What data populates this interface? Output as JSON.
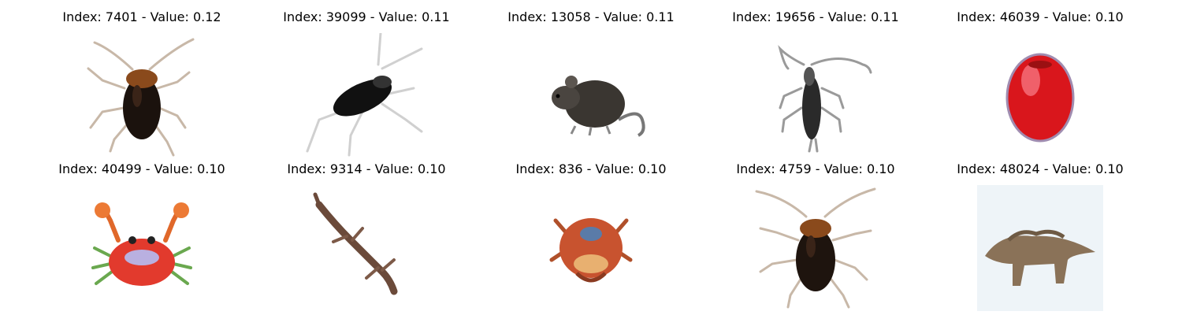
{
  "grid": {
    "items": [
      {
        "title": "Index: 7401 - Value: 0.12",
        "subject": "cockroach"
      },
      {
        "title": "Index: 39099 - Value: 0.11",
        "subject": "cockroach"
      },
      {
        "title": "Index: 13058 - Value: 0.11",
        "subject": "mouse"
      },
      {
        "title": "Index: 19656 - Value: 0.11",
        "subject": "beetle"
      },
      {
        "title": "Index: 46039 - Value: 0.10",
        "subject": "apple"
      },
      {
        "title": "Index: 40499 - Value: 0.10",
        "subject": "crab"
      },
      {
        "title": "Index: 9314 - Value: 0.10",
        "subject": "lizard"
      },
      {
        "title": "Index: 836 - Value: 0.10",
        "subject": "crab"
      },
      {
        "title": "Index: 4759 - Value: 0.10",
        "subject": "cockroach"
      },
      {
        "title": "Index: 48024 - Value: 0.10",
        "subject": "dinosaur"
      }
    ]
  }
}
